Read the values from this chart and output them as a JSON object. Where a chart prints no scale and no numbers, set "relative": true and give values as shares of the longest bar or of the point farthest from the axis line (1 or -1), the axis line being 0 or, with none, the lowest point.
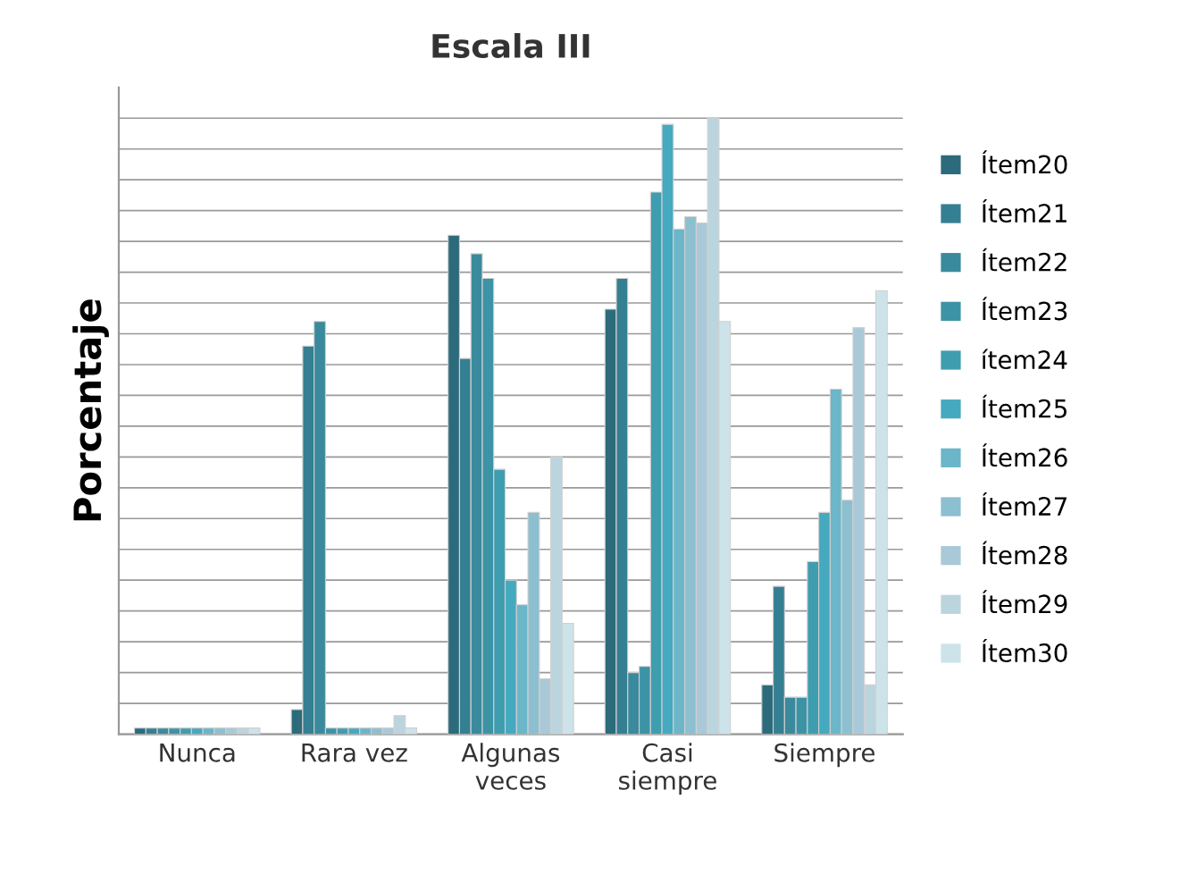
{
  "chart_data": {
    "type": "bar",
    "title": "Escala III",
    "ylabel": "Porcentaje",
    "relative": true,
    "grid": "y",
    "legend": "right",
    "categories": [
      "Nunca",
      "Rara vez",
      "Algunas\nveces",
      "Casi\nsiempre",
      "Siempre"
    ],
    "series": [
      {
        "name": "Ítem20",
        "color": "#2c6b7c",
        "values": [
          0.01,
          0.04,
          0.81,
          0.69,
          0.08
        ]
      },
      {
        "name": "Ítem21",
        "color": "#357f92",
        "values": [
          0.01,
          0.63,
          0.61,
          0.74,
          0.24
        ]
      },
      {
        "name": "Ítem22",
        "color": "#3a8a9d",
        "values": [
          0.01,
          0.67,
          0.78,
          0.1,
          0.06
        ]
      },
      {
        "name": "Ítem23",
        "color": "#3c93a6",
        "values": [
          0.01,
          0.01,
          0.74,
          0.11,
          0.06
        ]
      },
      {
        "name": "ítem24",
        "color": "#3f9db0",
        "values": [
          0.01,
          0.01,
          0.43,
          0.88,
          0.28
        ]
      },
      {
        "name": "Ítem25",
        "color": "#45a9bf",
        "values": [
          0.01,
          0.01,
          0.25,
          0.99,
          0.36
        ]
      },
      {
        "name": "Ítem26",
        "color": "#6bb6c8",
        "values": [
          0.01,
          0.01,
          0.21,
          0.82,
          0.56
        ]
      },
      {
        "name": "Ítem27",
        "color": "#8cbfd0",
        "values": [
          0.01,
          0.01,
          0.36,
          0.84,
          0.38
        ]
      },
      {
        "name": "Ítem28",
        "color": "#a9c9d8",
        "values": [
          0.01,
          0.01,
          0.09,
          0.83,
          0.66
        ]
      },
      {
        "name": "Ítem29",
        "color": "#bbd5df",
        "values": [
          0.01,
          0.03,
          0.45,
          1,
          0.08
        ]
      },
      {
        "name": "Ítem30",
        "color": "#cde3ea",
        "values": [
          0.01,
          0.01,
          0.18,
          0.67,
          0.72
        ]
      }
    ]
  }
}
